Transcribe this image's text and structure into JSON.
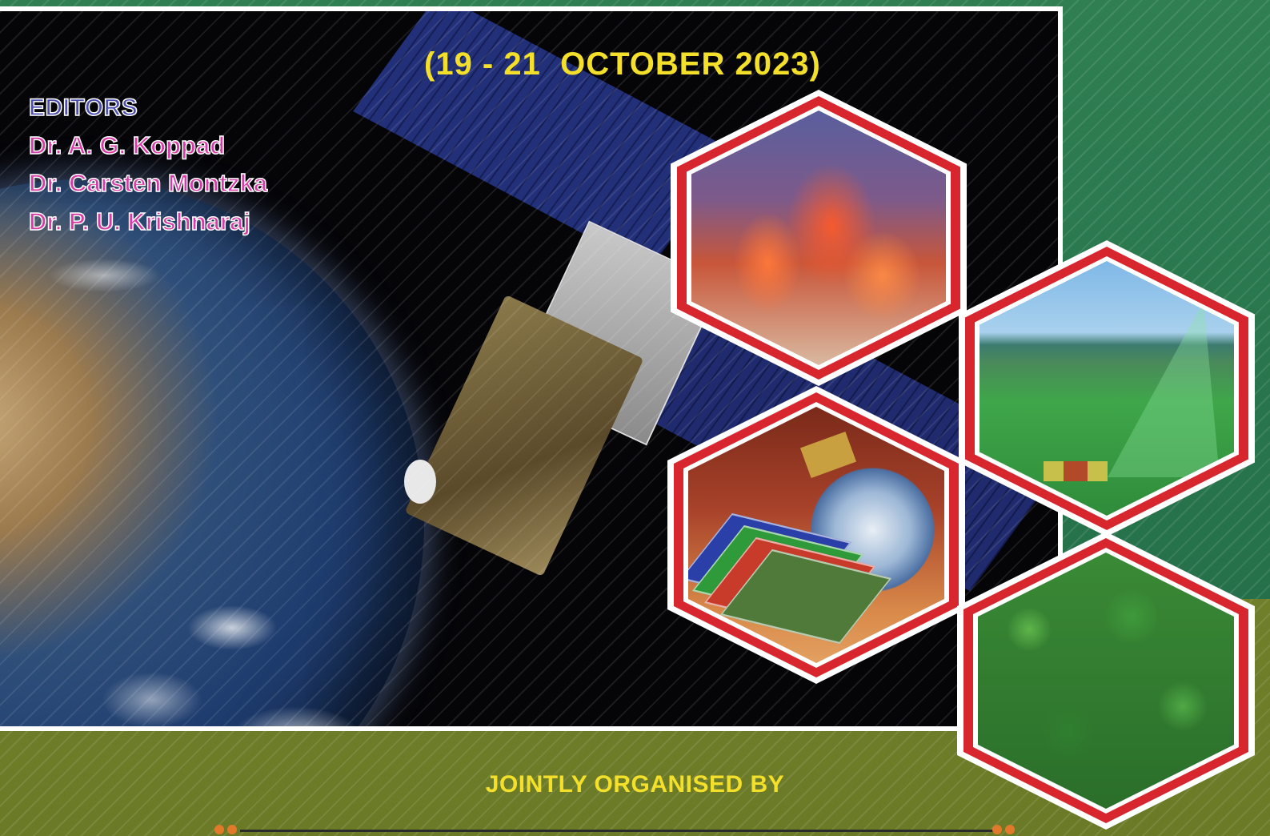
{
  "event": {
    "dates": "(19 - 21  OCTOBER 2023)"
  },
  "editors": {
    "heading": "EDITORS",
    "names": [
      "Dr. A. G. Koppad",
      "Dr. Carsten Montzka",
      "Dr. P. U. Krishnaraj"
    ]
  },
  "footer": {
    "organised_by": "JOINTLY ORGANISED BY"
  },
  "colors": {
    "accent_yellow": "#f4e02a",
    "editors_heading": "#4a4fb0",
    "editor_name": "#d83aa8",
    "hex_border_red": "#d7262e",
    "background_green": "#2f7f52",
    "background_olive": "#6f7f2a"
  },
  "images": [
    "earth-globe",
    "satellite",
    "forest-fire",
    "field-sensing",
    "remote-sensing-layers",
    "forest-canopy"
  ]
}
